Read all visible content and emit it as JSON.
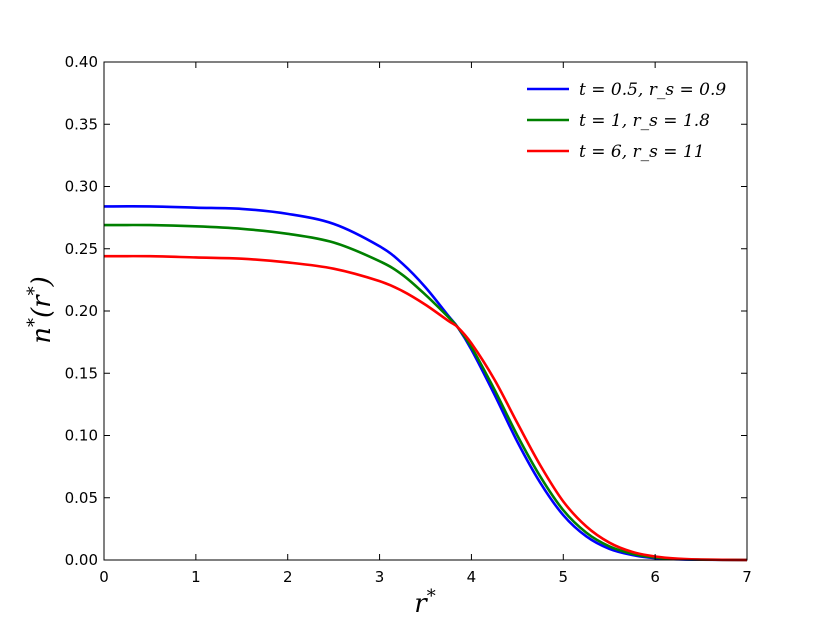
{
  "chart_data": {
    "type": "line",
    "xlabel": "r*",
    "ylabel": "n*(r*)",
    "xlim": [
      0,
      7
    ],
    "ylim": [
      0,
      0.4
    ],
    "x_ticks": [
      0,
      1,
      2,
      3,
      4,
      5,
      6,
      7
    ],
    "x_tick_labels": [
      "0",
      "1",
      "2",
      "3",
      "4",
      "5",
      "6",
      "7"
    ],
    "y_ticks": [
      0,
      0.05,
      0.1,
      0.15,
      0.2,
      0.25,
      0.3,
      0.35,
      0.4
    ],
    "y_tick_labels": [
      "0.00",
      "0.05",
      "0.10",
      "0.15",
      "0.20",
      "0.25",
      "0.30",
      "0.35",
      "0.40"
    ],
    "grid": false,
    "legend_position": "top-right",
    "series": [
      {
        "name": "t = 0.5,  r_s = 0.9",
        "color": "#0000ff",
        "x": [
          0,
          0.5,
          1,
          1.5,
          2,
          2.5,
          3,
          3.25,
          3.5,
          3.75,
          3.85,
          4,
          4.25,
          4.5,
          4.75,
          5,
          5.25,
          5.5,
          5.75,
          6,
          6.25,
          6.5,
          7
        ],
        "y": [
          0.284,
          0.284,
          0.283,
          0.282,
          0.278,
          0.27,
          0.252,
          0.238,
          0.219,
          0.196,
          0.187,
          0.169,
          0.133,
          0.095,
          0.062,
          0.036,
          0.019,
          0.009,
          0.004,
          0.0015,
          0.0005,
          0.0002,
          0
        ]
      },
      {
        "name": "t = 1,  r_s = 1.8",
        "color": "#008000",
        "x": [
          0,
          0.5,
          1,
          1.5,
          2,
          2.5,
          3,
          3.25,
          3.5,
          3.75,
          3.85,
          4,
          4.25,
          4.5,
          4.75,
          5,
          5.25,
          5.5,
          5.75,
          6,
          6.25,
          6.5,
          7
        ],
        "y": [
          0.269,
          0.269,
          0.268,
          0.266,
          0.262,
          0.255,
          0.24,
          0.229,
          0.213,
          0.195,
          0.187,
          0.171,
          0.137,
          0.1,
          0.067,
          0.04,
          0.022,
          0.011,
          0.005,
          0.002,
          0.0008,
          0.0003,
          0
        ]
      },
      {
        "name": "t = 6,  r_s = 11",
        "color": "#ff0000",
        "x": [
          0,
          0.5,
          1,
          1.5,
          2,
          2.5,
          3,
          3.25,
          3.5,
          3.75,
          3.85,
          4,
          4.25,
          4.5,
          4.75,
          5,
          5.25,
          5.5,
          5.75,
          6,
          6.25,
          6.5,
          7
        ],
        "y": [
          0.244,
          0.244,
          0.243,
          0.242,
          0.239,
          0.234,
          0.224,
          0.216,
          0.205,
          0.192,
          0.187,
          0.174,
          0.145,
          0.11,
          0.076,
          0.047,
          0.027,
          0.014,
          0.0065,
          0.0028,
          0.0011,
          0.0004,
          0
        ]
      }
    ]
  }
}
